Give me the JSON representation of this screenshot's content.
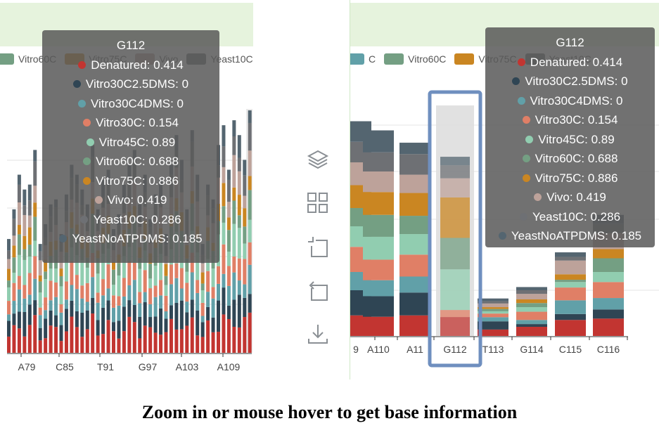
{
  "colors": {
    "Denatured": "#c23531",
    "Vitro30C2.5DMS": "#2f4554",
    "Vitro30C4DMS": "#61a0a8",
    "Vitro30C": "#e07f66",
    "Vitro45C": "#91cdb0",
    "Vitro60C": "#749f83",
    "Vitro75C": "#ca8622",
    "Vivo": "#bda29a",
    "Yeast10C": "#6e7074",
    "YeastNoATPDMS": "#546570"
  },
  "left_legend": [
    {
      "label": "Vitro60C",
      "color": "#749f83"
    },
    {
      "label": "Vitro75C",
      "color": "#ca8622"
    },
    {
      "label": "Vivo",
      "color": "#bda29a"
    },
    {
      "label": "Yeast10C",
      "color": "#6e7074"
    }
  ],
  "right_legend": [
    {
      "label": "C",
      "color": "#61a0a8"
    },
    {
      "label": "Vitro60C",
      "color": "#749f83"
    },
    {
      "label": "Vitro75C",
      "color": "#ca8622"
    },
    {
      "label": "Yeast10C",
      "color": "#6e7074"
    }
  ],
  "toolbox_icons": [
    "layers-icon",
    "grid-icon",
    "zoom-in-icon",
    "zoom-reset-icon",
    "download-icon"
  ],
  "chart_data": [
    {
      "type": "bar",
      "stacked": true,
      "panel": "overview",
      "x_tick_labels": [
        "A79",
        "C85",
        "T91",
        "G97",
        "A103",
        "A109"
      ],
      "series_names": [
        "Denatured",
        "Vitro30C2.5DMS",
        "Vitro30C4DMS",
        "Vitro30C",
        "Vitro45C",
        "Vitro60C",
        "Vitro75C",
        "Vivo",
        "Yeast10C",
        "YeastNoATPDMS"
      ],
      "stack_totals": [
        2.3,
        2.9,
        3.6,
        3.3,
        3.4,
        4.1,
        2.2,
        2.6,
        3.0,
        3.1,
        2.4,
        3.2,
        3.8,
        3.6,
        3.3,
        3.0,
        4.2,
        2.9,
        3.5,
        3.7,
        2.5,
        2.8,
        3.4,
        3.8,
        4.1,
        3.0,
        3.6,
        2.7,
        3.2,
        3.5,
        2.4,
        3.8,
        4.4,
        3.9,
        2.9,
        4.5,
        3.6,
        2.2,
        3.4,
        3.1,
        4.2,
        4.6,
        3.7,
        4.7,
        4.4,
        3.9,
        4.9
      ],
      "tooltip": {
        "title": "G112",
        "rows": [
          {
            "name": "Denatured",
            "value": 0.414
          },
          {
            "name": "Vitro30C2.5DMS",
            "value": 0
          },
          {
            "name": "Vitro30C4DMS",
            "value": 0
          },
          {
            "name": "Vitro30C",
            "value": 0.154
          },
          {
            "name": "Vitro45C",
            "value": 0.89
          },
          {
            "name": "Vitro60C",
            "value": 0.688
          },
          {
            "name": "Vitro75C",
            "value": 0.886
          },
          {
            "name": "Vivo",
            "value": 0.419
          },
          {
            "name": "Yeast10C",
            "value": 0.286
          },
          {
            "name": "YeastNoATPDMS",
            "value": 0.185
          }
        ]
      }
    },
    {
      "type": "bar",
      "stacked": true,
      "panel": "zoomed",
      "categories": [
        "",
        "A110",
        "A111",
        "G112",
        "T113",
        "G114",
        "C115",
        "C116"
      ],
      "x_tick_labels": [
        "9",
        "A110",
        "A11",
        "G112",
        "T113",
        "G114",
        "C115",
        "C116"
      ],
      "series": [
        {
          "name": "Denatured",
          "values": [
            0.45,
            0.42,
            0.45,
            0.414,
            0.14,
            0.2,
            0.35,
            0.38
          ]
        },
        {
          "name": "Vitro30C2.5DMS",
          "values": [
            0.55,
            0.45,
            0.5,
            0,
            0.18,
            0.06,
            0.13,
            0.2
          ]
        },
        {
          "name": "Vitro30C4DMS",
          "values": [
            0.4,
            0.35,
            0.35,
            0,
            0.09,
            0.09,
            0.3,
            0.25
          ]
        },
        {
          "name": "Vitro30C",
          "values": [
            0.55,
            0.45,
            0.48,
            0.154,
            0.08,
            0.18,
            0.28,
            0.35
          ]
        },
        {
          "name": "Vitro45C",
          "values": [
            0.45,
            0.5,
            0.45,
            0.89,
            0.05,
            0.1,
            0.12,
            0.22
          ]
        },
        {
          "name": "Vitro60C",
          "values": [
            0.4,
            0.48,
            0.4,
            0.688,
            0.05,
            0.09,
            0.05,
            0.3
          ]
        },
        {
          "name": "Vitro75C",
          "values": [
            0.5,
            0.5,
            0.5,
            0.886,
            0.04,
            0.08,
            0.12,
            0.2
          ]
        },
        {
          "name": "Vivo",
          "values": [
            0.5,
            0.45,
            0.4,
            0.419,
            0.08,
            0.12,
            0.3,
            0.35
          ]
        },
        {
          "name": "Yeast10C",
          "values": [
            0.45,
            0.42,
            0.45,
            0.286,
            0.05,
            0.08,
            0.08,
            0.2
          ]
        },
        {
          "name": "YeastNoATPDMS",
          "values": [
            0.45,
            0.48,
            0.25,
            0.185,
            0.06,
            0.07,
            0.1,
            0.2
          ]
        }
      ],
      "highlighted_category": "G112",
      "tooltip": {
        "title": "G112",
        "rows": [
          {
            "name": "Denatured",
            "value": 0.414
          },
          {
            "name": "Vitro30C2.5DMS",
            "value": 0
          },
          {
            "name": "Vitro30C4DMS",
            "value": 0
          },
          {
            "name": "Vitro30C",
            "value": 0.154
          },
          {
            "name": "Vitro45C",
            "value": 0.89
          },
          {
            "name": "Vitro60C",
            "value": 0.688
          },
          {
            "name": "Vitro75C",
            "value": 0.886
          },
          {
            "name": "Vivo",
            "value": 0.419
          },
          {
            "name": "Yeast10C",
            "value": 0.286
          },
          {
            "name": "YeastNoATPDMS",
            "value": 0.185
          }
        ]
      }
    }
  ],
  "caption": "Zoom in or mouse hover to get base information"
}
